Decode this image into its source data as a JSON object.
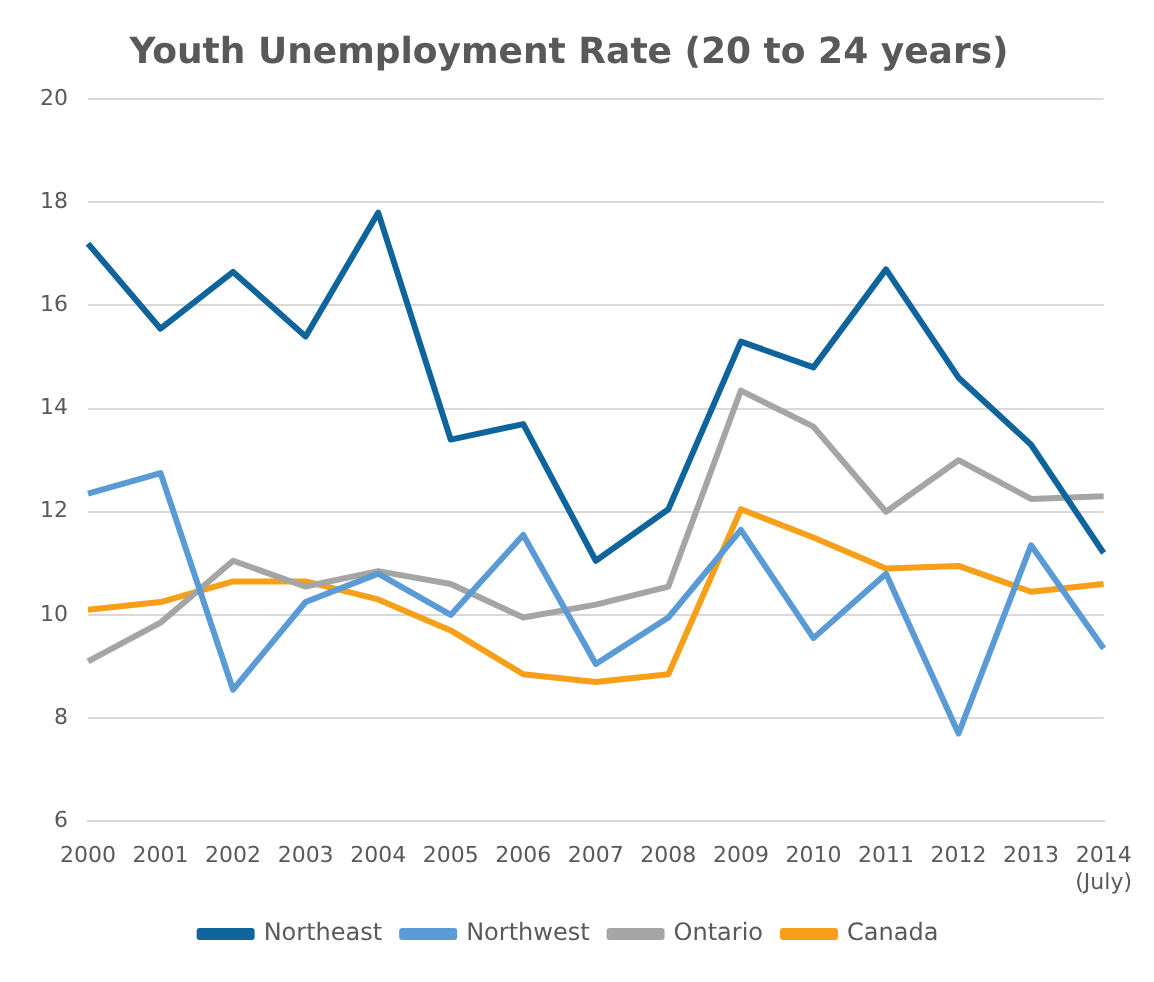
{
  "chart_data": {
    "type": "line",
    "title": "Youth Unemployment Rate (20 to 24 years)",
    "categories": [
      "2000",
      "2001",
      "2002",
      "2003",
      "2004",
      "2005",
      "2006",
      "2007",
      "2008",
      "2009",
      "2010",
      "2011",
      "2012",
      "2013",
      "2014\n(July)"
    ],
    "series": [
      {
        "name": "Northeast",
        "color": "#10649c",
        "values": [
          17.2,
          15.55,
          16.65,
          15.4,
          17.8,
          13.4,
          13.7,
          11.05,
          12.05,
          15.3,
          14.8,
          16.7,
          14.6,
          13.3,
          11.2
        ]
      },
      {
        "name": "Northwest",
        "color": "#5b9bd5",
        "values": [
          12.35,
          12.75,
          8.55,
          10.25,
          10.8,
          10.0,
          11.55,
          9.05,
          9.95,
          11.65,
          9.55,
          10.8,
          7.7,
          11.35,
          9.35
        ]
      },
      {
        "name": "Ontario",
        "color": "#a5a5a5",
        "values": [
          9.1,
          9.85,
          11.05,
          10.55,
          10.85,
          10.6,
          9.95,
          10.2,
          10.55,
          14.35,
          13.65,
          12.0,
          13.0,
          12.25,
          12.3
        ]
      },
      {
        "name": "Canada",
        "color": "#f6a01a",
        "values": [
          10.1,
          10.25,
          10.65,
          10.65,
          10.3,
          9.7,
          8.85,
          8.7,
          8.85,
          12.05,
          11.5,
          10.9,
          10.95,
          10.45,
          10.6
        ]
      }
    ],
    "ylim": [
      6,
      20
    ],
    "yticks": [
      6,
      8,
      10,
      12,
      14,
      16,
      18,
      20
    ],
    "grid": "y",
    "legend": "bottom",
    "marker": "none",
    "line_style": "solid"
  }
}
